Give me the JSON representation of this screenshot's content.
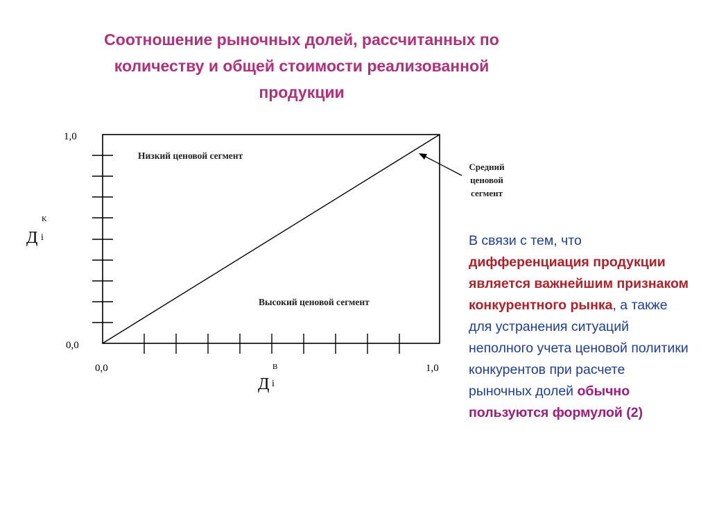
{
  "title": {
    "line1": "Соотношение рыночных долей, рассчитанных по",
    "line2": "количеству и общей стоимости реализованной",
    "line3": "продукции"
  },
  "diagram": {
    "y_max_label": "1,0",
    "y_min_label": "0,0",
    "x_min_label": "0,0",
    "x_max_label": "1,0",
    "y_axis_symbol": "Д",
    "y_axis_subscript": "i",
    "y_axis_superscript": "К",
    "x_axis_symbol": "Д",
    "x_axis_subscript": "i",
    "x_axis_superscript": "В",
    "low_segment_label": "Низкий ценовой сегмент",
    "high_segment_label": "Высокий ценовой сегмент",
    "middle_segment_label_line1": "Средний",
    "middle_segment_label_line2": "ценовой",
    "middle_segment_label_line3": "сегмент",
    "line_color": "#000000"
  },
  "paragraph": {
    "part1": "В связи с тем, что ",
    "part2_bold_red": "дифференциация продукции является важнейшим признаком конкурентного рынка",
    "part3": ", а также для устранения ситуаций неполного учета ценовой политики конкурентов при расчете рыночных долей ",
    "part4_bold_magenta": "обычно пользуются формулой (2)"
  },
  "colors": {
    "title": "#b0307a",
    "paragraph": "#1f3e96",
    "emphasis_red": "#b0202a",
    "emphasis_magenta": "#9c1e7a"
  }
}
